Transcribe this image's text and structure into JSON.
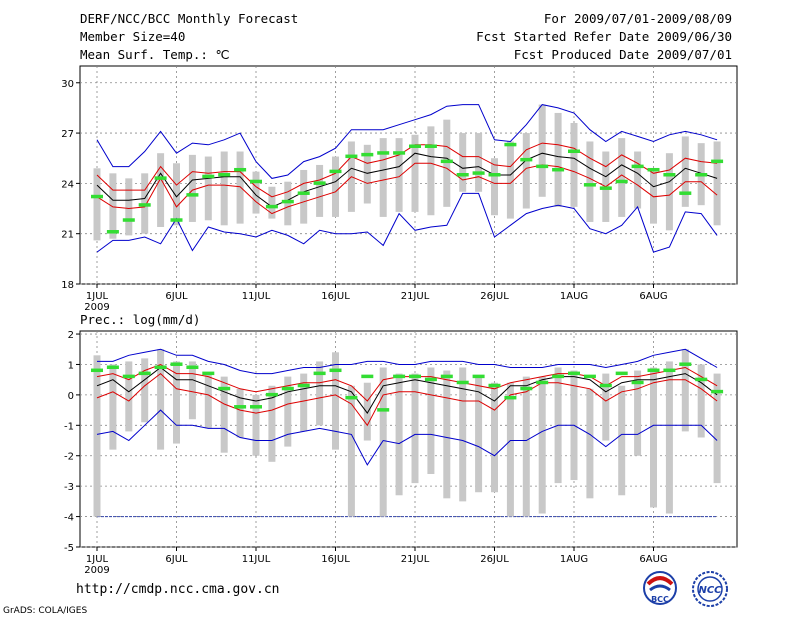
{
  "header": {
    "title": "DERF/NCC/BCC Monthly Forecast",
    "member_size": "Member Size=40",
    "variable": "Mean Surf. Temp.: ℃",
    "period": "For 2009/07/01-2009/08/09",
    "fcst_started": "Fcst Started Refer Date 2009/06/30",
    "fcst_produced": "Fcst Produced Date 2009/07/01"
  },
  "footer": {
    "url": "http://cmdp.ncc.cma.gov.cn",
    "grads_credit": "GrADS: COLA/IGES",
    "logo_bcc_text": "BCC",
    "logo_ncc_text": "NCC"
  },
  "colors": {
    "max_line": "#0000cc",
    "min_line": "#0000cc",
    "spread_line": "#dd0000",
    "mean_line": "#000000",
    "box": "#c8c8c8",
    "climatology": "#33dd33",
    "grid": "#888888"
  },
  "chart_data": [
    {
      "type": "line",
      "title": "Mean Surf. Temp.: ℃",
      "ylabel": "Mean Surf. Temp.: ℃",
      "ylim": [
        18,
        31
      ],
      "yticks": [
        "18",
        "21",
        "24",
        "27",
        "30"
      ],
      "xticks": [
        "1JUL",
        "6JUL",
        "11JUL",
        "16JUL",
        "21JUL",
        "26JUL",
        "1AUG",
        "6AUG"
      ],
      "xtick_sublabel": "2009",
      "days": 40,
      "series": [
        {
          "name": "max",
          "values": [
            19.9,
            20.6,
            20.6,
            20.8,
            20.4,
            21.9,
            20.0,
            21.4,
            21.1,
            21.0,
            20.8,
            21.2,
            20.9,
            20.4,
            21.2,
            21.0,
            21.0,
            21.1,
            20.3,
            22.2,
            21.2,
            21.4,
            21.5,
            23.4,
            23.4,
            20.8,
            21.5,
            22.2,
            22.5,
            22.7,
            22.5,
            21.3,
            21.0,
            21.5,
            22.6,
            19.9,
            20.2,
            22.3,
            22.2,
            20.9
          ]
        },
        {
          "name": "min",
          "values": [
            26.6,
            25.0,
            25.0,
            25.9,
            27.1,
            25.8,
            26.4,
            26.3,
            26.6,
            27.0,
            25.3,
            24.3,
            24.5,
            25.3,
            25.6,
            26.1,
            27.2,
            27.2,
            27.2,
            27.5,
            27.8,
            28.1,
            28.6,
            28.7,
            28.7,
            26.6,
            26.5,
            27.5,
            28.7,
            28.5,
            28.2,
            27.2,
            26.5,
            27.1,
            26.8,
            26.5,
            26.9,
            27.1,
            26.9,
            26.6
          ]
        },
        {
          "name": "upper",
          "values": [
            24.5,
            23.6,
            23.6,
            23.6,
            25.0,
            23.9,
            24.7,
            24.6,
            24.7,
            24.7,
            23.8,
            23.2,
            23.5,
            24.0,
            24.2,
            24.6,
            25.6,
            25.2,
            25.4,
            25.7,
            26.3,
            26.3,
            26.2,
            25.6,
            25.6,
            25.1,
            25.0,
            26.0,
            26.4,
            26.3,
            26.1,
            25.5,
            25.0,
            25.7,
            25.2,
            24.6,
            24.8,
            25.5,
            25.3,
            25.2
          ]
        },
        {
          "name": "mean",
          "values": [
            23.9,
            23.0,
            23.0,
            23.1,
            24.6,
            23.2,
            24.2,
            24.3,
            24.4,
            24.4,
            23.3,
            22.6,
            23.0,
            23.5,
            23.8,
            24.1,
            24.9,
            24.6,
            24.8,
            25.0,
            25.8,
            25.6,
            25.5,
            24.9,
            25.0,
            24.5,
            24.5,
            25.4,
            25.8,
            25.6,
            25.5,
            24.9,
            24.4,
            25.1,
            24.6,
            23.8,
            24.1,
            24.9,
            24.6,
            24.3
          ]
        },
        {
          "name": "lower",
          "values": [
            23.2,
            22.6,
            22.5,
            22.6,
            24.3,
            22.6,
            23.6,
            23.9,
            23.9,
            23.8,
            22.9,
            22.2,
            22.6,
            22.9,
            23.2,
            23.5,
            24.4,
            24.0,
            24.2,
            24.4,
            25.2,
            25.2,
            24.9,
            24.2,
            24.4,
            24.0,
            24.0,
            24.9,
            25.1,
            25.0,
            24.7,
            24.3,
            23.8,
            24.5,
            23.9,
            23.2,
            23.3,
            24.1,
            24.1,
            23.3
          ]
        },
        {
          "name": "box_low",
          "values": [
            20.6,
            20.7,
            20.9,
            21.0,
            21.4,
            21.5,
            21.7,
            21.8,
            21.5,
            21.6,
            22.2,
            21.9,
            21.5,
            21.6,
            22.0,
            22.0,
            22.3,
            22.8,
            22.0,
            22.3,
            22.3,
            22.1,
            22.6,
            23.5,
            23.5,
            22.1,
            21.9,
            22.5,
            23.2,
            22.6,
            22.6,
            21.7,
            21.7,
            22.0,
            22.5,
            21.6,
            21.2,
            22.6,
            22.7,
            21.5
          ]
        },
        {
          "name": "box_high",
          "values": [
            24.9,
            24.6,
            24.3,
            24.6,
            25.8,
            25.2,
            25.7,
            25.6,
            25.9,
            25.9,
            24.7,
            23.8,
            24.1,
            24.8,
            25.1,
            25.6,
            26.5,
            26.3,
            26.7,
            26.7,
            26.9,
            27.4,
            27.8,
            27.0,
            27.0,
            25.5,
            26.5,
            27.0,
            28.7,
            28.2,
            27.6,
            26.5,
            25.9,
            26.7,
            25.9,
            24.7,
            25.8,
            26.8,
            26.4,
            26.5
          ]
        },
        {
          "name": "climatology",
          "values": [
            23.2,
            21.1,
            21.8,
            22.7,
            24.3,
            21.8,
            23.3,
            24.4,
            24.5,
            24.8,
            24.1,
            22.6,
            22.9,
            23.4,
            24.0,
            24.7,
            25.6,
            25.7,
            25.8,
            25.8,
            26.2,
            26.2,
            25.3,
            24.5,
            24.6,
            24.5,
            26.3,
            25.4,
            25.0,
            24.8,
            25.9,
            23.9,
            23.7,
            24.1,
            25.0,
            24.8,
            24.5,
            23.4,
            24.5,
            25.3
          ]
        }
      ]
    },
    {
      "type": "line",
      "title": "Prec.: log(mm/d)",
      "ylabel": "Prec.: log(mm/d)",
      "ylim": [
        -5,
        2.1
      ],
      "yticks": [
        "-5",
        "-4",
        "-3",
        "-2",
        "-1",
        "0",
        "1",
        "2"
      ],
      "xticks": [
        "1JUL",
        "6JUL",
        "11JUL",
        "16JUL",
        "21JUL",
        "26JUL",
        "1AUG",
        "6AUG"
      ],
      "xtick_sublabel": "2009",
      "days": 40,
      "baseline": -4.0,
      "series": [
        {
          "name": "max",
          "values": [
            1.1,
            1.1,
            1.3,
            1.4,
            1.5,
            1.3,
            1.3,
            1.1,
            1.0,
            0.8,
            0.7,
            0.7,
            0.8,
            0.9,
            0.9,
            1.0,
            1.0,
            1.1,
            1.1,
            1.0,
            1.0,
            1.1,
            1.1,
            1.1,
            1.0,
            1.0,
            0.9,
            0.9,
            0.9,
            1.0,
            1.0,
            1.0,
            0.9,
            1.0,
            1.1,
            1.3,
            1.4,
            1.5,
            1.2,
            0.9
          ]
        },
        {
          "name": "min",
          "values": [
            -1.3,
            -1.2,
            -1.5,
            -1.0,
            -0.5,
            -1.0,
            -1.0,
            -1.1,
            -1.1,
            -1.4,
            -1.5,
            -1.5,
            -1.3,
            -1.2,
            -1.1,
            -1.2,
            -1.3,
            -2.3,
            -1.5,
            -1.6,
            -1.3,
            -1.3,
            -1.4,
            -1.5,
            -1.7,
            -2.0,
            -1.5,
            -1.5,
            -1.2,
            -1.0,
            -1.0,
            -1.3,
            -1.7,
            -1.3,
            -1.3,
            -1.0,
            -1.0,
            -1.0,
            -1.0,
            -1.5
          ]
        },
        {
          "name": "upper",
          "values": [
            0.6,
            0.7,
            0.5,
            0.8,
            1.0,
            0.7,
            0.7,
            0.6,
            0.4,
            0.2,
            0.1,
            0.2,
            0.3,
            0.4,
            0.4,
            0.5,
            0.3,
            -0.2,
            0.5,
            0.6,
            0.6,
            0.6,
            0.5,
            0.4,
            0.3,
            0.2,
            0.4,
            0.5,
            0.6,
            0.7,
            0.7,
            0.6,
            0.3,
            0.6,
            0.6,
            0.7,
            0.8,
            0.9,
            0.6,
            0.3
          ]
        },
        {
          "name": "mean",
          "values": [
            0.3,
            0.5,
            0.1,
            0.5,
            0.9,
            0.5,
            0.5,
            0.3,
            0.1,
            -0.1,
            -0.2,
            -0.1,
            0.1,
            0.2,
            0.3,
            0.3,
            0.1,
            -0.6,
            0.3,
            0.4,
            0.5,
            0.4,
            0.3,
            0.2,
            0.1,
            -0.2,
            0.3,
            0.3,
            0.5,
            0.6,
            0.6,
            0.5,
            0.1,
            0.4,
            0.5,
            0.5,
            0.6,
            0.7,
            0.4,
            0.0
          ]
        },
        {
          "name": "lower",
          "values": [
            -0.1,
            0.1,
            -0.2,
            0.3,
            0.7,
            0.2,
            0.1,
            0.0,
            -0.3,
            -0.5,
            -0.6,
            -0.5,
            -0.3,
            -0.2,
            -0.1,
            0.0,
            -0.3,
            -1.0,
            0.0,
            0.1,
            0.1,
            0.0,
            -0.1,
            -0.2,
            -0.2,
            -0.5,
            0.0,
            0.1,
            0.4,
            0.4,
            0.3,
            0.2,
            -0.2,
            0.1,
            0.2,
            0.4,
            0.5,
            0.5,
            0.2,
            -0.2
          ]
        },
        {
          "name": "box_low",
          "values": [
            -4.0,
            -1.8,
            -1.2,
            -0.9,
            -1.8,
            -1.6,
            -0.8,
            -1.1,
            -1.9,
            -1.4,
            -2.0,
            -2.2,
            -1.7,
            -1.2,
            -1.0,
            -1.8,
            -4.0,
            -1.5,
            -4.0,
            -3.3,
            -2.9,
            -2.6,
            -3.4,
            -3.5,
            -3.2,
            -3.2,
            -4.0,
            -4.0,
            -3.9,
            -2.9,
            -2.8,
            -3.4,
            -1.5,
            -3.3,
            -2.0,
            -3.7,
            -3.9,
            -1.2,
            -1.4,
            -2.9
          ]
        },
        {
          "name": "box_high",
          "values": [
            1.3,
            1.0,
            1.1,
            1.2,
            1.5,
            1.1,
            1.1,
            0.7,
            0.6,
            0.2,
            0.0,
            0.3,
            0.6,
            0.7,
            1.1,
            1.4,
            0.3,
            0.4,
            0.9,
            0.7,
            0.7,
            0.9,
            0.8,
            0.9,
            0.6,
            0.4,
            0.4,
            0.6,
            0.6,
            0.9,
            0.8,
            0.2,
            0.7,
            0.3,
            0.8,
            0.9,
            1.1,
            1.5,
            1.0,
            0.7
          ]
        },
        {
          "name": "climatology",
          "values": [
            0.8,
            0.9,
            0.6,
            0.7,
            0.9,
            1.0,
            0.9,
            0.7,
            0.2,
            -0.4,
            -0.4,
            0.0,
            0.2,
            0.3,
            0.7,
            0.8,
            -0.1,
            0.6,
            -0.5,
            0.6,
            0.6,
            0.5,
            0.6,
            0.4,
            0.6,
            0.3,
            -0.1,
            0.2,
            0.4,
            0.6,
            0.7,
            0.6,
            0.3,
            0.7,
            0.4,
            0.8,
            0.8,
            1.0,
            0.5,
            0.1
          ]
        }
      ]
    }
  ]
}
